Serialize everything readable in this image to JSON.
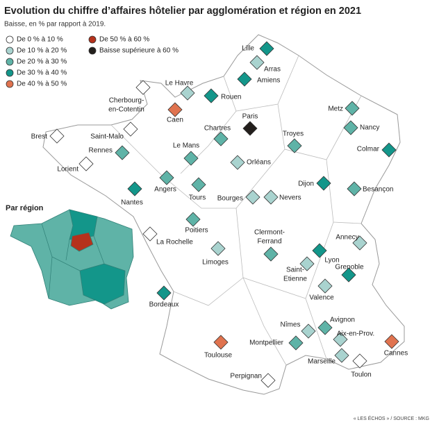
{
  "header": {
    "title": "Evolution du chiffre d’affaires hôtelier par agglomération et région en 2021",
    "subtitle": "Baisse, en % par rapport à 2019."
  },
  "legend": [
    {
      "label": "De 0 % à 10 %",
      "color": "#ffffff"
    },
    {
      "label": "De 10 % à 20 %",
      "color": "#a9d3cf"
    },
    {
      "label": "De 20 % à 30 %",
      "color": "#5fb3a7"
    },
    {
      "label": "De 30 % à 40 %",
      "color": "#13968a"
    },
    {
      "label": "De 40 % à 50 %",
      "color": "#e0734f"
    },
    {
      "label": "De 50 % à 60 %",
      "color": "#b5321c"
    },
    {
      "label": "Baisse supérieure à 60 %",
      "color": "#231f1c"
    }
  ],
  "cities": [
    {
      "name": [
        "Lille"
      ],
      "class": 3
    },
    {
      "name": [
        "Arras"
      ],
      "class": 1
    },
    {
      "name": [
        "Amiens"
      ],
      "class": 3
    },
    {
      "name": [
        "Le Havre"
      ],
      "class": 1
    },
    {
      "name": [
        "Rouen"
      ],
      "class": 3
    },
    {
      "name": [
        "Cherbourg-",
        "en-Cotentin"
      ],
      "class": 0
    },
    {
      "name": [
        "Caen"
      ],
      "class": 4
    },
    {
      "name": [
        "Paris"
      ],
      "class": 6
    },
    {
      "name": [
        "Chartres"
      ],
      "class": 2
    },
    {
      "name": [
        "Metz"
      ],
      "class": 2
    },
    {
      "name": [
        "Nancy"
      ],
      "class": 2
    },
    {
      "name": [
        "Troyes"
      ],
      "class": 2
    },
    {
      "name": [
        "Colmar"
      ],
      "class": 3
    },
    {
      "name": [
        "Brest"
      ],
      "class": 0
    },
    {
      "name": [
        "Saint-Malo"
      ],
      "class": 0
    },
    {
      "name": [
        "Rennes"
      ],
      "class": 2
    },
    {
      "name": [
        "Le Mans"
      ],
      "class": 2
    },
    {
      "name": [
        "Orléans"
      ],
      "class": 1
    },
    {
      "name": [
        "Lorient"
      ],
      "class": 0
    },
    {
      "name": [
        "Dijon"
      ],
      "class": 3
    },
    {
      "name": [
        "Besançon"
      ],
      "class": 2
    },
    {
      "name": [
        "Angers"
      ],
      "class": 2
    },
    {
      "name": [
        "Tours"
      ],
      "class": 2
    },
    {
      "name": [
        "Nantes"
      ],
      "class": 3
    },
    {
      "name": [
        "Bourges"
      ],
      "class": 1
    },
    {
      "name": [
        "Nevers"
      ],
      "class": 1
    },
    {
      "name": [
        "Poitiers"
      ],
      "class": 2
    },
    {
      "name": [
        "La Rochelle"
      ],
      "class": 0
    },
    {
      "name": [
        "Clermont-",
        "Ferrand"
      ],
      "class": 2
    },
    {
      "name": [
        "Annecy"
      ],
      "class": 1
    },
    {
      "name": [
        "Limoges"
      ],
      "class": 1
    },
    {
      "name": [
        "Lyon"
      ],
      "class": 3
    },
    {
      "name": [
        "Saint-",
        "Etienne"
      ],
      "class": 1
    },
    {
      "name": [
        "Grenoble"
      ],
      "class": 3
    },
    {
      "name": [
        "Valence"
      ],
      "class": 1
    },
    {
      "name": [
        "Bordeaux"
      ],
      "class": 3
    },
    {
      "name": [
        "Nîmes"
      ],
      "class": 1
    },
    {
      "name": [
        "Avignon"
      ],
      "class": 2
    },
    {
      "name": [
        "Aix-en-Prov."
      ],
      "class": 1
    },
    {
      "name": [
        "Montpellier"
      ],
      "class": 2
    },
    {
      "name": [
        "Cannes"
      ],
      "class": 4
    },
    {
      "name": [
        "Toulouse"
      ],
      "class": 4
    },
    {
      "name": [
        "Marseille"
      ],
      "class": 1
    },
    {
      "name": [
        "Toulon"
      ],
      "class": 0
    },
    {
      "name": [
        "Perpignan"
      ],
      "class": 0
    }
  ],
  "inset": {
    "title": "Par région"
  },
  "source": "« LES ÉCHOS » / SOURCE : MKG"
}
